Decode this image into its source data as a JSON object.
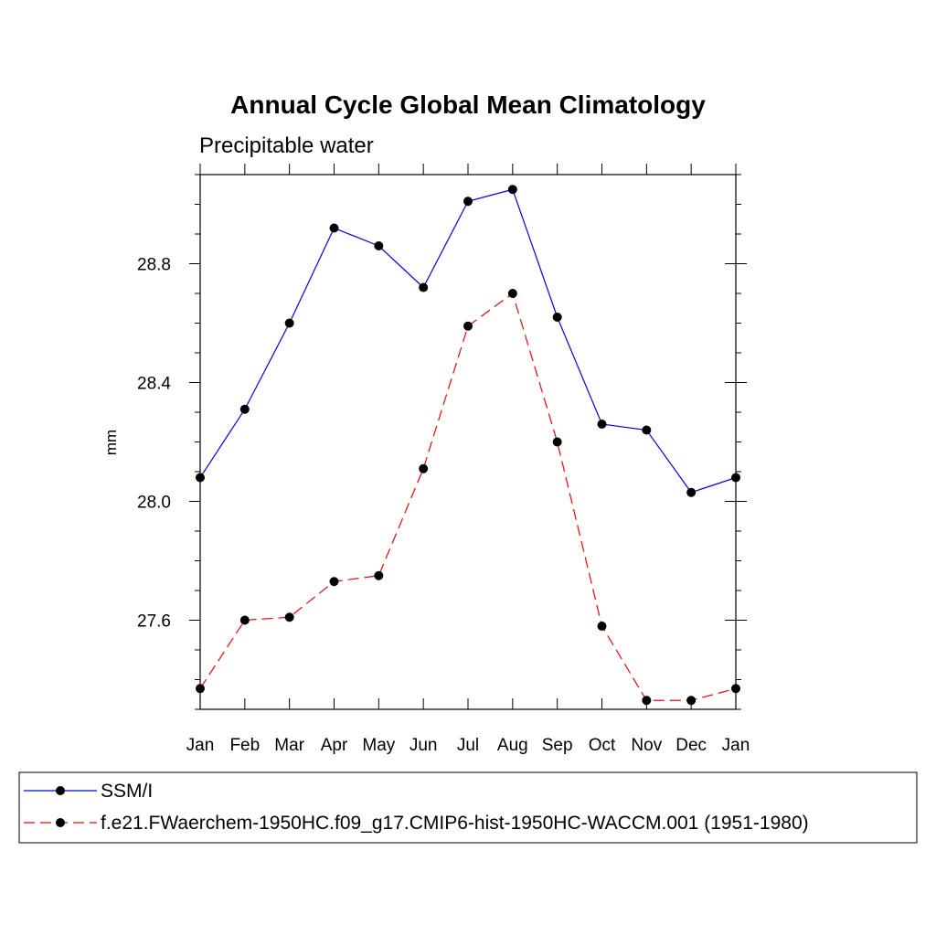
{
  "chart_data": {
    "type": "line",
    "title": "Annual Cycle Global Mean Climatology",
    "subtitle": "Precipitable water",
    "xlabel": "",
    "ylabel": "mm",
    "categories": [
      "Jan",
      "Feb",
      "Mar",
      "Apr",
      "May",
      "Jun",
      "Jul",
      "Aug",
      "Sep",
      "Oct",
      "Nov",
      "Dec",
      "Jan"
    ],
    "ylim": [
      27.3,
      29.1
    ],
    "yticks": [
      27.6,
      28.0,
      28.4,
      28.8
    ],
    "ytick_labels": [
      "27.6",
      "28.0",
      "28.4",
      "28.8"
    ],
    "minor_step": 0.1,
    "grid": false,
    "legend_position": "bottom",
    "series": [
      {
        "name": "SSM/I",
        "color": "#0000ff",
        "dash": "solid",
        "marker": "filled-circle",
        "values": [
          28.08,
          28.31,
          28.6,
          28.92,
          28.86,
          28.72,
          29.01,
          29.05,
          28.62,
          28.26,
          28.24,
          28.03,
          28.08
        ]
      },
      {
        "name": "f.e21.FWaerchem-1950HC.f09_g17.CMIP6-hist-1950HC-WACCM.001 (1951-1980)",
        "color": "#ff0000",
        "dash": "dashed",
        "marker": "filled-circle",
        "values": [
          27.37,
          27.6,
          27.61,
          27.73,
          27.75,
          28.11,
          28.59,
          28.7,
          28.2,
          27.58,
          27.33,
          27.33,
          27.37
        ]
      }
    ]
  }
}
